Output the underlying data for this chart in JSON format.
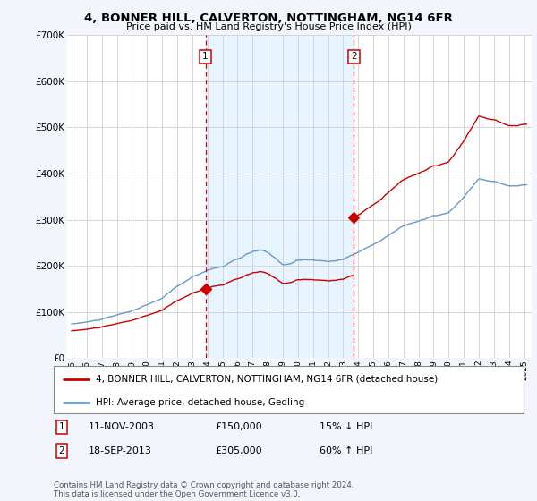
{
  "title": "4, BONNER HILL, CALVERTON, NOTTINGHAM, NG14 6FR",
  "subtitle": "Price paid vs. HM Land Registry's House Price Index (HPI)",
  "background_color": "#f2f5fb",
  "plot_bg_color": "#ffffff",
  "ylim": [
    0,
    700000
  ],
  "yticks": [
    0,
    100000,
    200000,
    300000,
    400000,
    500000,
    600000,
    700000
  ],
  "ytick_labels": [
    "£0",
    "£100K",
    "£200K",
    "£300K",
    "£400K",
    "£500K",
    "£600K",
    "£700K"
  ],
  "t1_x": 2003.87,
  "t2_x": 2013.71,
  "t1_price": 150000,
  "t2_price": 305000,
  "t1_label": "1",
  "t2_label": "2",
  "t1_date_str": "11-NOV-2003",
  "t2_date_str": "18-SEP-2013",
  "t1_pct": "15% ↓ HPI",
  "t2_pct": "60% ↑ HPI",
  "t1_price_str": "£150,000",
  "t2_price_str": "£305,000",
  "legend_house": "4, BONNER HILL, CALVERTON, NOTTINGHAM, NG14 6FR (detached house)",
  "legend_hpi": "HPI: Average price, detached house, Gedling",
  "footnote": "Contains HM Land Registry data © Crown copyright and database right 2024.\nThis data is licensed under the Open Government Licence v3.0.",
  "house_color": "#cc0000",
  "hpi_color": "#6699cc",
  "shade_color": "#ddeeff",
  "grid_color": "#d0d0d0",
  "x_min": 1994.7,
  "x_max": 2025.5
}
